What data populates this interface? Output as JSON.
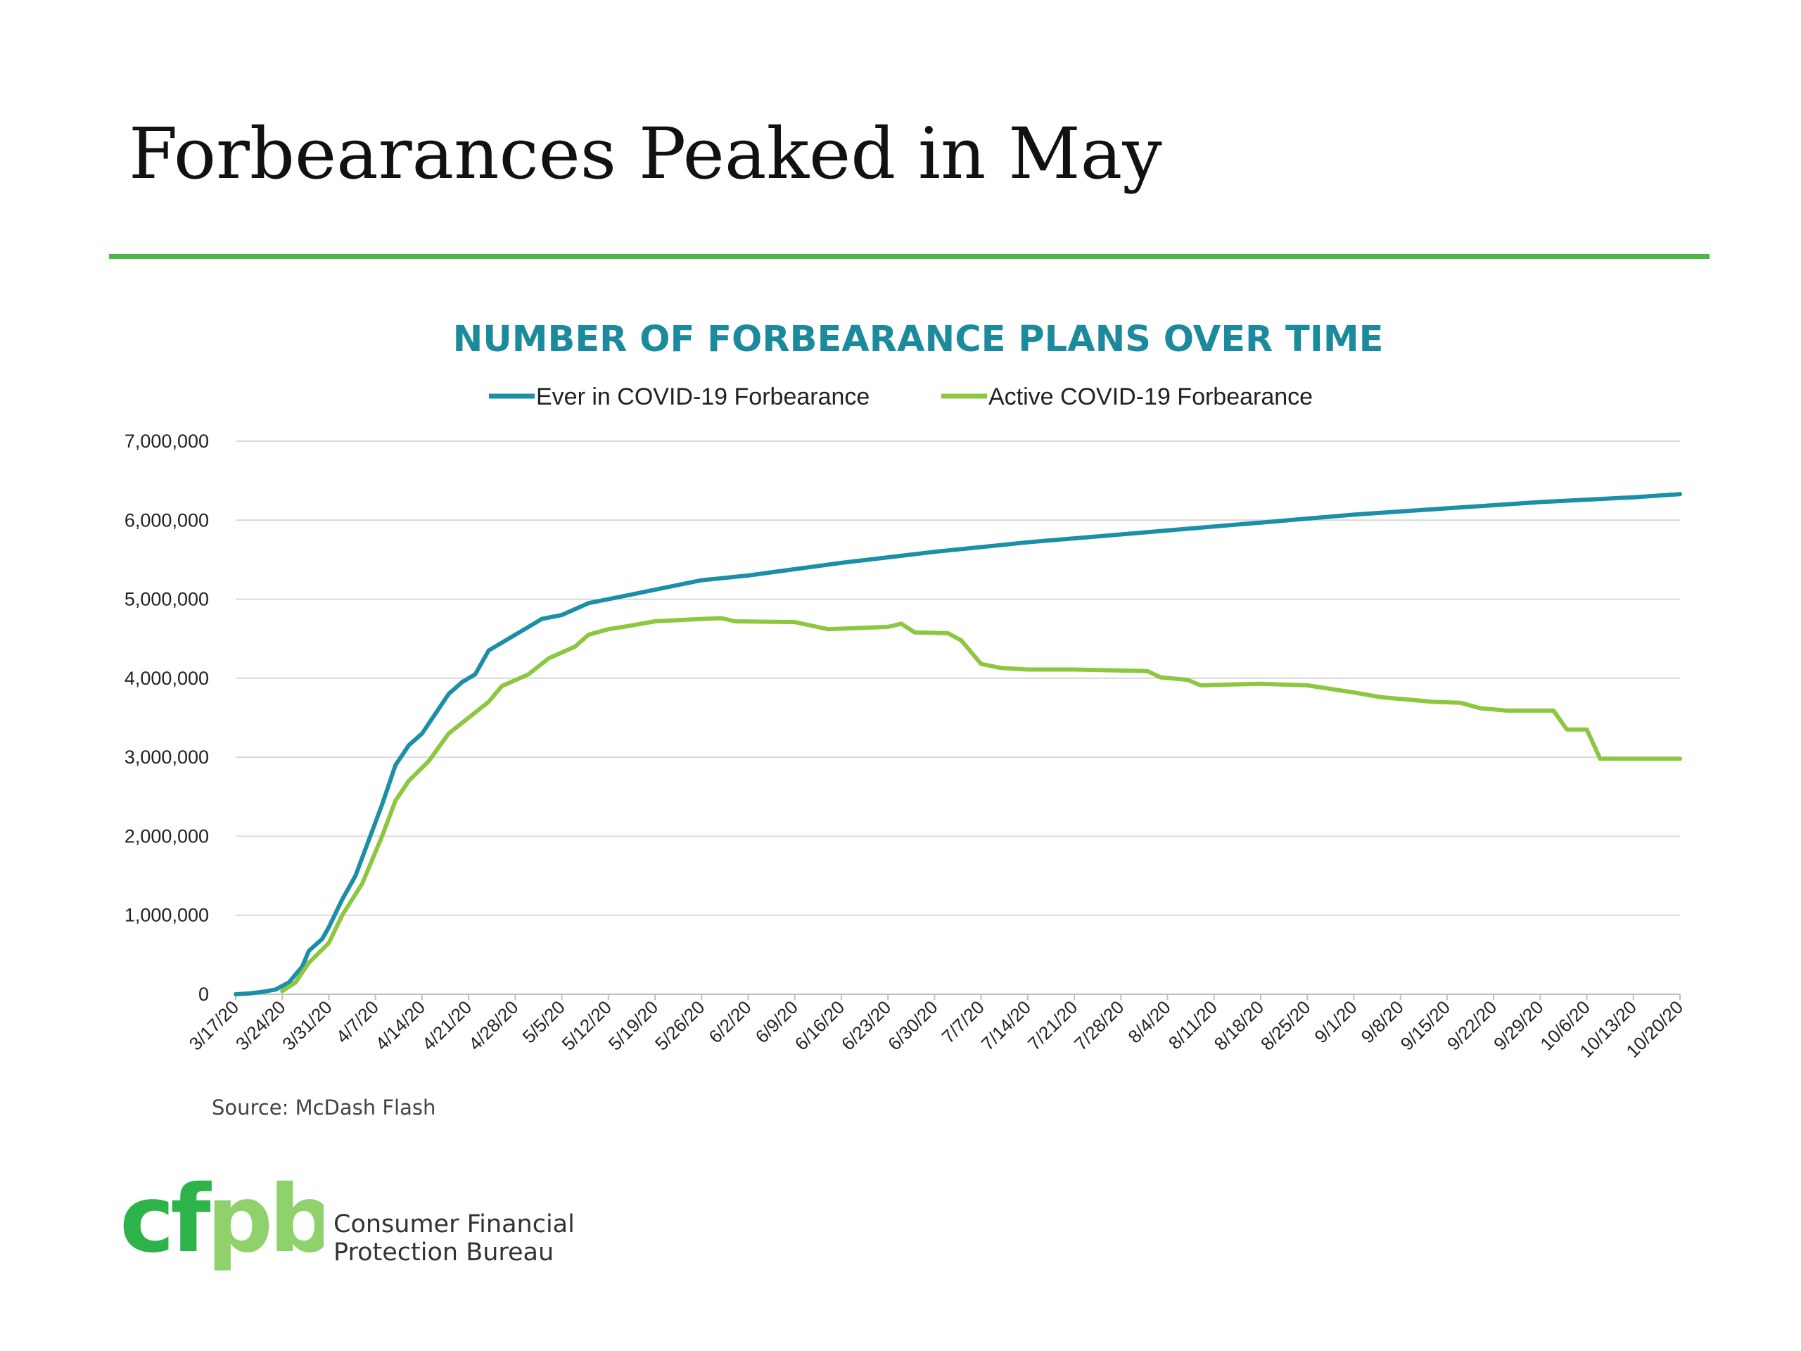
{
  "slide": {
    "title": "Forbearances Peaked in May",
    "rule_color": "#4db848"
  },
  "chart_data": {
    "type": "line",
    "title": "NUMBER OF FORBEARANCE PLANS OVER TIME",
    "xlabel": "",
    "ylabel": "",
    "ylim": [
      0,
      7000000
    ],
    "yticks": [
      0,
      1000000,
      2000000,
      3000000,
      4000000,
      5000000,
      6000000,
      7000000
    ],
    "ytick_labels": [
      "0",
      "1,000,000",
      "2,000,000",
      "3,000,000",
      "4,000,000",
      "5,000,000",
      "6,000,000",
      "7,000,000"
    ],
    "xlim": [
      "2020-03-17",
      "2020-10-20"
    ],
    "xtick_labels": [
      "3/17/20",
      "3/24/20",
      "3/31/20",
      "4/7/20",
      "4/14/20",
      "4/21/20",
      "4/28/20",
      "5/5/20",
      "5/12/20",
      "5/19/20",
      "5/26/20",
      "6/2/20",
      "6/9/20",
      "6/16/20",
      "6/23/20",
      "6/30/20",
      "7/7/20",
      "7/14/20",
      "7/21/20",
      "7/28/20",
      "8/4/20",
      "8/11/20",
      "8/18/20",
      "8/25/20",
      "9/1/20",
      "9/8/20",
      "9/15/20",
      "9/22/20",
      "9/29/20",
      "10/6/20",
      "10/13/20",
      "10/20/20"
    ],
    "grid": true,
    "legend_position": "top-center",
    "series": [
      {
        "name": "Ever in COVID-19 Forbearance",
        "color": "#1b8fa6",
        "points": [
          [
            "2020-03-17",
            0
          ],
          [
            "2020-03-19",
            10000
          ],
          [
            "2020-03-21",
            30000
          ],
          [
            "2020-03-23",
            60000
          ],
          [
            "2020-03-25",
            150000
          ],
          [
            "2020-03-27",
            350000
          ],
          [
            "2020-03-28",
            550000
          ],
          [
            "2020-03-30",
            700000
          ],
          [
            "2020-03-31",
            850000
          ],
          [
            "2020-04-02",
            1200000
          ],
          [
            "2020-04-04",
            1500000
          ],
          [
            "2020-04-06",
            1950000
          ],
          [
            "2020-04-08",
            2400000
          ],
          [
            "2020-04-10",
            2900000
          ],
          [
            "2020-04-12",
            3150000
          ],
          [
            "2020-04-14",
            3300000
          ],
          [
            "2020-04-16",
            3550000
          ],
          [
            "2020-04-18",
            3800000
          ],
          [
            "2020-04-20",
            3950000
          ],
          [
            "2020-04-22",
            4050000
          ],
          [
            "2020-04-24",
            4350000
          ],
          [
            "2020-04-26",
            4450000
          ],
          [
            "2020-04-28",
            4550000
          ],
          [
            "2020-04-30",
            4650000
          ],
          [
            "2020-05-02",
            4750000
          ],
          [
            "2020-05-05",
            4800000
          ],
          [
            "2020-05-09",
            4950000
          ],
          [
            "2020-05-12",
            5000000
          ],
          [
            "2020-05-19",
            5120000
          ],
          [
            "2020-05-26",
            5240000
          ],
          [
            "2020-06-02",
            5300000
          ],
          [
            "2020-06-09",
            5380000
          ],
          [
            "2020-06-16",
            5460000
          ],
          [
            "2020-06-23",
            5530000
          ],
          [
            "2020-06-30",
            5600000
          ],
          [
            "2020-07-07",
            5660000
          ],
          [
            "2020-07-14",
            5720000
          ],
          [
            "2020-07-21",
            5770000
          ],
          [
            "2020-07-28",
            5820000
          ],
          [
            "2020-08-04",
            5870000
          ],
          [
            "2020-08-11",
            5920000
          ],
          [
            "2020-08-18",
            5970000
          ],
          [
            "2020-08-25",
            6020000
          ],
          [
            "2020-09-01",
            6070000
          ],
          [
            "2020-09-08",
            6110000
          ],
          [
            "2020-09-15",
            6150000
          ],
          [
            "2020-09-22",
            6190000
          ],
          [
            "2020-09-29",
            6230000
          ],
          [
            "2020-10-06",
            6260000
          ],
          [
            "2020-10-13",
            6290000
          ],
          [
            "2020-10-20",
            6330000
          ]
        ]
      },
      {
        "name": "Active COVID-19 Forbearance",
        "color": "#8dc63f",
        "points": [
          [
            "2020-03-24",
            40000
          ],
          [
            "2020-03-26",
            150000
          ],
          [
            "2020-03-28",
            400000
          ],
          [
            "2020-03-31",
            650000
          ],
          [
            "2020-04-02",
            1000000
          ],
          [
            "2020-04-05",
            1400000
          ],
          [
            "2020-04-08",
            2000000
          ],
          [
            "2020-04-10",
            2450000
          ],
          [
            "2020-04-12",
            2700000
          ],
          [
            "2020-04-15",
            2950000
          ],
          [
            "2020-04-18",
            3300000
          ],
          [
            "2020-04-21",
            3500000
          ],
          [
            "2020-04-24",
            3700000
          ],
          [
            "2020-04-26",
            3900000
          ],
          [
            "2020-04-30",
            4050000
          ],
          [
            "2020-05-03",
            4250000
          ],
          [
            "2020-05-07",
            4400000
          ],
          [
            "2020-05-09",
            4550000
          ],
          [
            "2020-05-12",
            4620000
          ],
          [
            "2020-05-15",
            4660000
          ],
          [
            "2020-05-19",
            4720000
          ],
          [
            "2020-05-26",
            4750000
          ],
          [
            "2020-05-29",
            4760000
          ],
          [
            "2020-05-31",
            4720000
          ],
          [
            "2020-06-09",
            4710000
          ],
          [
            "2020-06-14",
            4620000
          ],
          [
            "2020-06-23",
            4650000
          ],
          [
            "2020-06-25",
            4690000
          ],
          [
            "2020-06-27",
            4580000
          ],
          [
            "2020-07-02",
            4570000
          ],
          [
            "2020-07-04",
            4480000
          ],
          [
            "2020-07-07",
            4180000
          ],
          [
            "2020-07-10",
            4130000
          ],
          [
            "2020-07-14",
            4110000
          ],
          [
            "2020-07-21",
            4110000
          ],
          [
            "2020-08-01",
            4090000
          ],
          [
            "2020-08-03",
            4010000
          ],
          [
            "2020-08-07",
            3980000
          ],
          [
            "2020-08-09",
            3910000
          ],
          [
            "2020-08-18",
            3930000
          ],
          [
            "2020-08-25",
            3910000
          ],
          [
            "2020-09-01",
            3820000
          ],
          [
            "2020-09-05",
            3760000
          ],
          [
            "2020-09-13",
            3700000
          ],
          [
            "2020-09-17",
            3690000
          ],
          [
            "2020-09-20",
            3620000
          ],
          [
            "2020-09-24",
            3590000
          ],
          [
            "2020-10-01",
            3590000
          ],
          [
            "2020-10-03",
            3350000
          ],
          [
            "2020-10-06",
            3350000
          ],
          [
            "2020-10-08",
            2980000
          ],
          [
            "2020-10-13",
            2980000
          ],
          [
            "2020-10-20",
            2980000
          ]
        ]
      }
    ],
    "source": "Source: McDash Flash"
  },
  "colors": {
    "chart_title": "#1a8a9c",
    "gridline": "#d9d9d9",
    "logo_dark_green": "#2eb24a",
    "logo_light_green": "#8fd16a"
  },
  "footer": {
    "logo_text": "cfpb",
    "org_line1": "Consumer Financial",
    "org_line2": "Protection Bureau"
  }
}
